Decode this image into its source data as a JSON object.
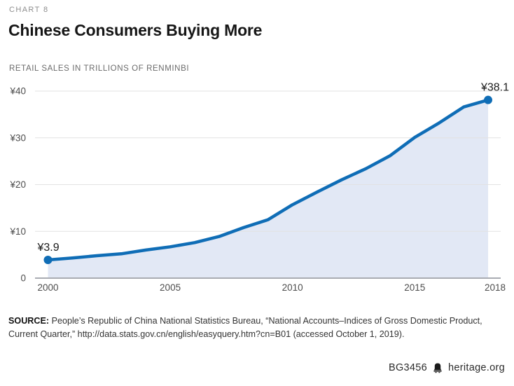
{
  "header": {
    "kicker": "CHART 8",
    "title": "Chinese Consumers Buying More",
    "subtitle": "RETAIL SALES IN TRILLIONS OF RENMINBI"
  },
  "chart_data": {
    "type": "area",
    "title": "Chinese Consumers Buying More",
    "subtitle": "RETAIL SALES IN TRILLIONS OF RENMINBI",
    "x": [
      2000,
      2001,
      2002,
      2003,
      2004,
      2005,
      2006,
      2007,
      2008,
      2009,
      2010,
      2011,
      2012,
      2013,
      2014,
      2015,
      2016,
      2017,
      2018
    ],
    "values": [
      3.9,
      4.3,
      4.8,
      5.2,
      6.0,
      6.7,
      7.6,
      8.9,
      10.8,
      12.5,
      15.7,
      18.4,
      21.0,
      23.4,
      26.2,
      30.1,
      33.2,
      36.6,
      38.1
    ],
    "xlabel": "",
    "ylabel": "Trillions of renminbi",
    "ylim": [
      0,
      40
    ],
    "grid": true,
    "legend": "none",
    "y_ticks": [
      {
        "value": 0,
        "label": "0"
      },
      {
        "value": 10,
        "label": "¥10"
      },
      {
        "value": 20,
        "label": "¥20"
      },
      {
        "value": 30,
        "label": "¥30"
      },
      {
        "value": 40,
        "label": "¥40"
      }
    ],
    "x_ticks": [
      {
        "value": 2000,
        "label": "2000"
      },
      {
        "value": 2005,
        "label": "2005"
      },
      {
        "value": 2010,
        "label": "2010"
      },
      {
        "value": 2015,
        "label": "2015"
      },
      {
        "value": 2018,
        "label": "2018"
      }
    ],
    "point_labels": [
      {
        "x": 2000,
        "text": "¥3.9",
        "anchor": "start"
      },
      {
        "x": 2018,
        "text": "¥38.1",
        "anchor": "end"
      }
    ],
    "colors": {
      "line": "#0f6db6",
      "fill": "#e2e8f5",
      "grid": "#e2e2e2",
      "axis": "#a9abb2",
      "tick_text": "#4d4d4d",
      "point_label_text": "#1a1a1a"
    }
  },
  "source": {
    "label": "SOURCE:",
    "text": " People’s Republic of China National Statistics Bureau, “National Accounts–Indices of Gross Domestic Product, Current Quarter,” http://data.stats.gov.cn/english/easyquery.htm?cn=B01 (accessed October 1, 2019)."
  },
  "footer": {
    "id": "BG3456",
    "site": "heritage.org",
    "icon": "liberty-bell"
  }
}
